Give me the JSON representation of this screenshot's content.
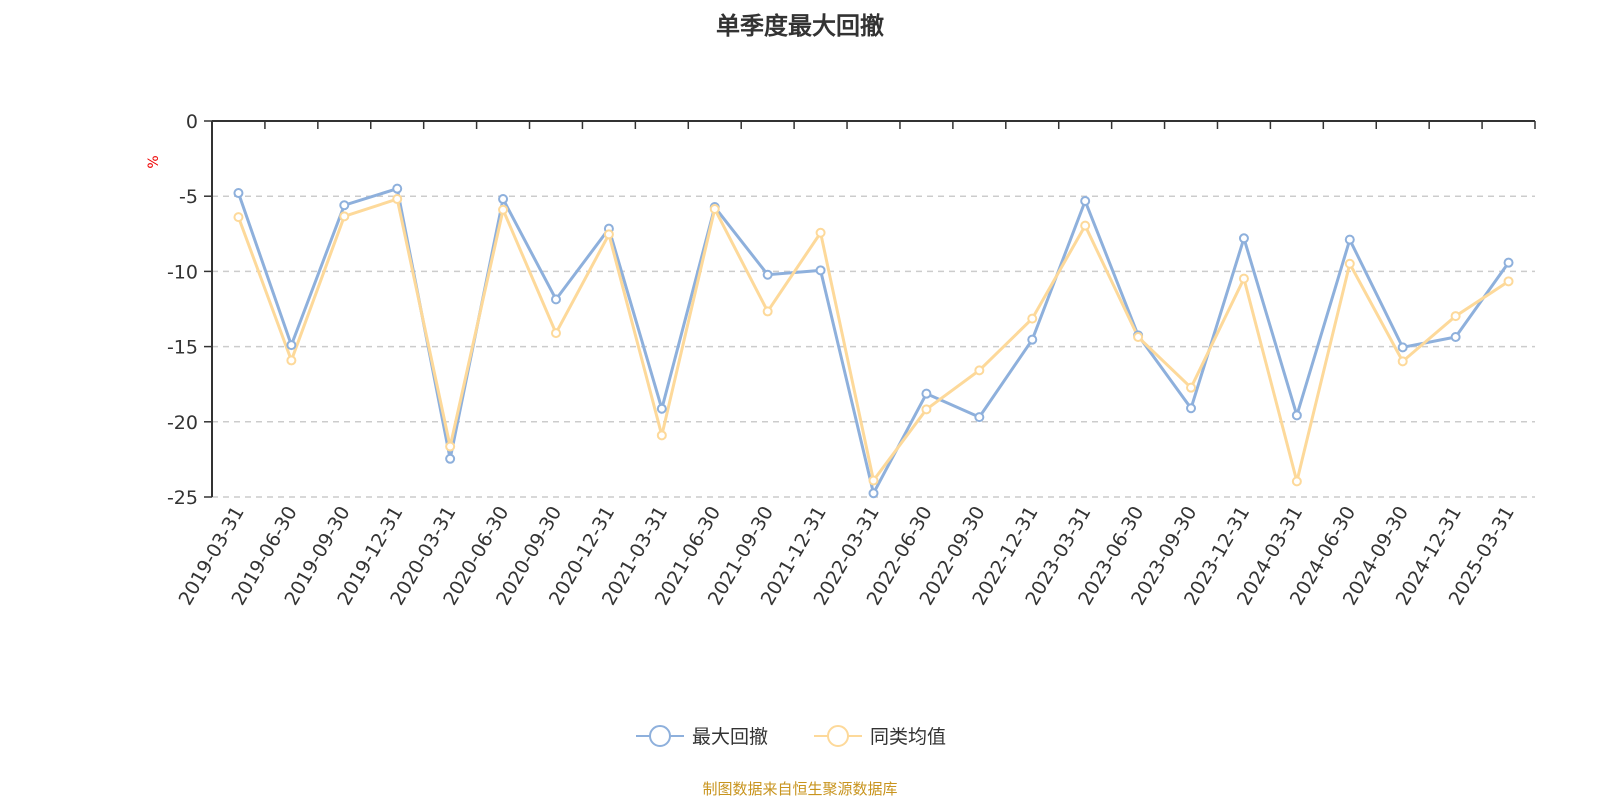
{
  "chart_data": {
    "type": "line",
    "title": "单季度最大回撤",
    "ylabel": "%",
    "ylim": [
      -25,
      0
    ],
    "yticks": [
      0,
      -5,
      -10,
      -15,
      -20,
      -25
    ],
    "grid": true,
    "legend_position": "bottom",
    "categories": [
      "2019-03-31",
      "2019-06-30",
      "2019-09-30",
      "2019-12-31",
      "2020-03-31",
      "2020-06-30",
      "2020-09-30",
      "2020-12-31",
      "2021-03-31",
      "2021-06-30",
      "2021-09-30",
      "2021-12-31",
      "2022-03-31",
      "2022-06-30",
      "2022-09-30",
      "2022-12-31",
      "2023-03-31",
      "2023-06-30",
      "2023-09-30",
      "2023-12-31",
      "2024-03-31",
      "2024-06-30",
      "2024-09-30",
      "2024-12-31",
      "2025-03-31"
    ],
    "series": [
      {
        "name": "最大回撤",
        "color": "#8eb0dc",
        "values": [
          -4.79,
          -14.9,
          -5.6,
          -4.5,
          -22.46,
          -5.19,
          -11.86,
          -7.16,
          -19.13,
          -5.72,
          -10.22,
          -9.93,
          -24.75,
          -18.13,
          -19.69,
          -14.54,
          -5.32,
          -14.25,
          -19.1,
          -7.8,
          -19.57,
          -7.89,
          -15.05,
          -14.36,
          -9.42
        ]
      },
      {
        "name": "同类均值",
        "color": "#fdd99a",
        "values": [
          -6.39,
          -15.92,
          -6.34,
          -5.19,
          -21.64,
          -5.9,
          -14.1,
          -7.54,
          -20.9,
          -5.85,
          -12.66,
          -7.43,
          -23.9,
          -19.17,
          -16.58,
          -13.14,
          -6.96,
          -14.36,
          -17.73,
          -10.48,
          -23.96,
          -9.49,
          -15.98,
          -12.97,
          -10.66
        ]
      }
    ],
    "source": "制图数据来自恒生聚源数据库"
  }
}
